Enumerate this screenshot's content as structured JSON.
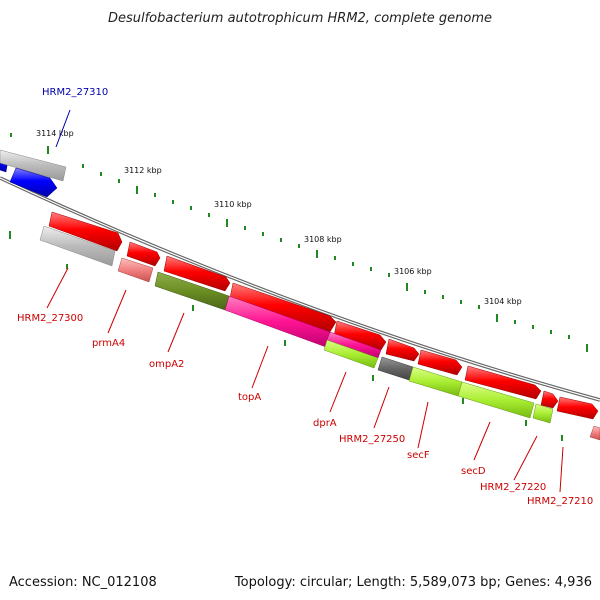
{
  "title": "Desulfobacterium autotrophicum HRM2, complete genome",
  "accession": "Accession: NC_012108",
  "topology": "Topology: circular; Length: 5,589,073 bp; Genes: 4,936",
  "kbp_labels": [
    "3114 kbp",
    "3112 kbp",
    "3110 kbp",
    "3108 kbp",
    "3106 kbp",
    "3104 kbp"
  ],
  "gene_labels": {
    "HRM2_27310": "HRM2_27310",
    "HRM2_27300": "HRM2_27300",
    "prmA4": "prmA4",
    "ompA2": "ompA2",
    "topA": "topA",
    "dprA": "dprA",
    "HRM2_27250": "HRM2_27250",
    "secF": "secF",
    "secD": "secD",
    "HRM2_27220": "HRM2_27220",
    "HRM2_27210": "HRM2_27210"
  },
  "colors": {
    "forward_gene": "#ff0000",
    "reverse_gene": "#0000ff",
    "label_red": "#cc0000",
    "label_blue": "#0000aa",
    "backbone": "#777777",
    "tick": "#228822",
    "pseudo_grey": "#bbbbbb",
    "olive": "#6b8e23",
    "magenta": "#ff1493",
    "lime": "#99ee22",
    "dark_grey": "#666666",
    "pink": "#f08080"
  }
}
